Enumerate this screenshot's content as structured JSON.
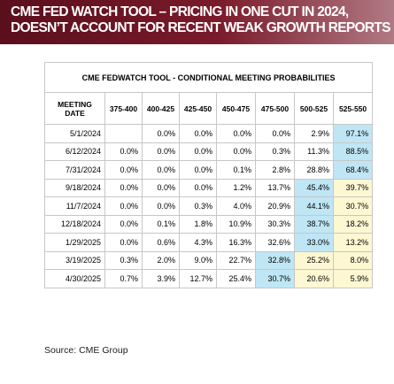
{
  "header": {
    "line1": "CME FED WATCH TOOL – PRICING IN ONE CUT IN 2024,",
    "line2": "DOESN’T ACCOUNT FOR RECENT WEAK GROWTH REPORTS"
  },
  "chart_data": {
    "type": "table",
    "title": "CME FEDWATCH TOOL - CONDITIONAL MEETING PROBABILITIES",
    "columns": [
      "MEETING DATE",
      "375-400",
      "400-425",
      "425-450",
      "450-475",
      "475-500",
      "500-525",
      "525-550"
    ],
    "rows": [
      {
        "date": "5/1/2024",
        "values": [
          "",
          "0.0%",
          "0.0%",
          "0.0%",
          "0.0%",
          "2.9%",
          "97.1%"
        ],
        "highlight": {
          "6": "blue"
        }
      },
      {
        "date": "6/12/2024",
        "values": [
          "0.0%",
          "0.0%",
          "0.0%",
          "0.0%",
          "0.3%",
          "11.3%",
          "88.5%"
        ],
        "highlight": {
          "6": "blue"
        }
      },
      {
        "date": "7/31/2024",
        "values": [
          "0.0%",
          "0.0%",
          "0.0%",
          "0.1%",
          "2.8%",
          "28.8%",
          "68.4%"
        ],
        "highlight": {
          "6": "blue"
        }
      },
      {
        "date": "9/18/2024",
        "values": [
          "0.0%",
          "0.0%",
          "0.0%",
          "1.2%",
          "13.7%",
          "45.4%",
          "39.7%"
        ],
        "highlight": {
          "5": "blue",
          "6": "yellow"
        }
      },
      {
        "date": "11/7/2024",
        "values": [
          "0.0%",
          "0.0%",
          "0.3%",
          "4.0%",
          "20.9%",
          "44.1%",
          "30.7%"
        ],
        "highlight": {
          "5": "blue",
          "6": "yellow"
        }
      },
      {
        "date": "12/18/2024",
        "values": [
          "0.0%",
          "0.1%",
          "1.8%",
          "10.9%",
          "30.3%",
          "38.7%",
          "18.2%"
        ],
        "highlight": {
          "5": "blue",
          "6": "yellow"
        }
      },
      {
        "date": "1/29/2025",
        "values": [
          "0.0%",
          "0.6%",
          "4.3%",
          "16.3%",
          "32.6%",
          "33.0%",
          "13.2%"
        ],
        "highlight": {
          "5": "blue",
          "6": "yellow"
        }
      },
      {
        "date": "3/19/2025",
        "values": [
          "0.3%",
          "2.0%",
          "9.0%",
          "22.7%",
          "32.8%",
          "25.2%",
          "8.0%"
        ],
        "highlight": {
          "4": "blue",
          "5": "yellow",
          "6": "yellow"
        }
      },
      {
        "date": "4/30/2025",
        "values": [
          "0.7%",
          "3.9%",
          "12.7%",
          "25.4%",
          "30.7%",
          "20.6%",
          "5.9%"
        ],
        "highlight": {
          "4": "blue",
          "5": "yellow",
          "6": "yellow"
        }
      }
    ]
  },
  "colors": {
    "header_bg": "#6e1524",
    "highlight_blue": "#bfe6f5",
    "highlight_yellow": "#fdf7d2",
    "grid": "#c7c7c7"
  },
  "source": "Source:  CME Group"
}
